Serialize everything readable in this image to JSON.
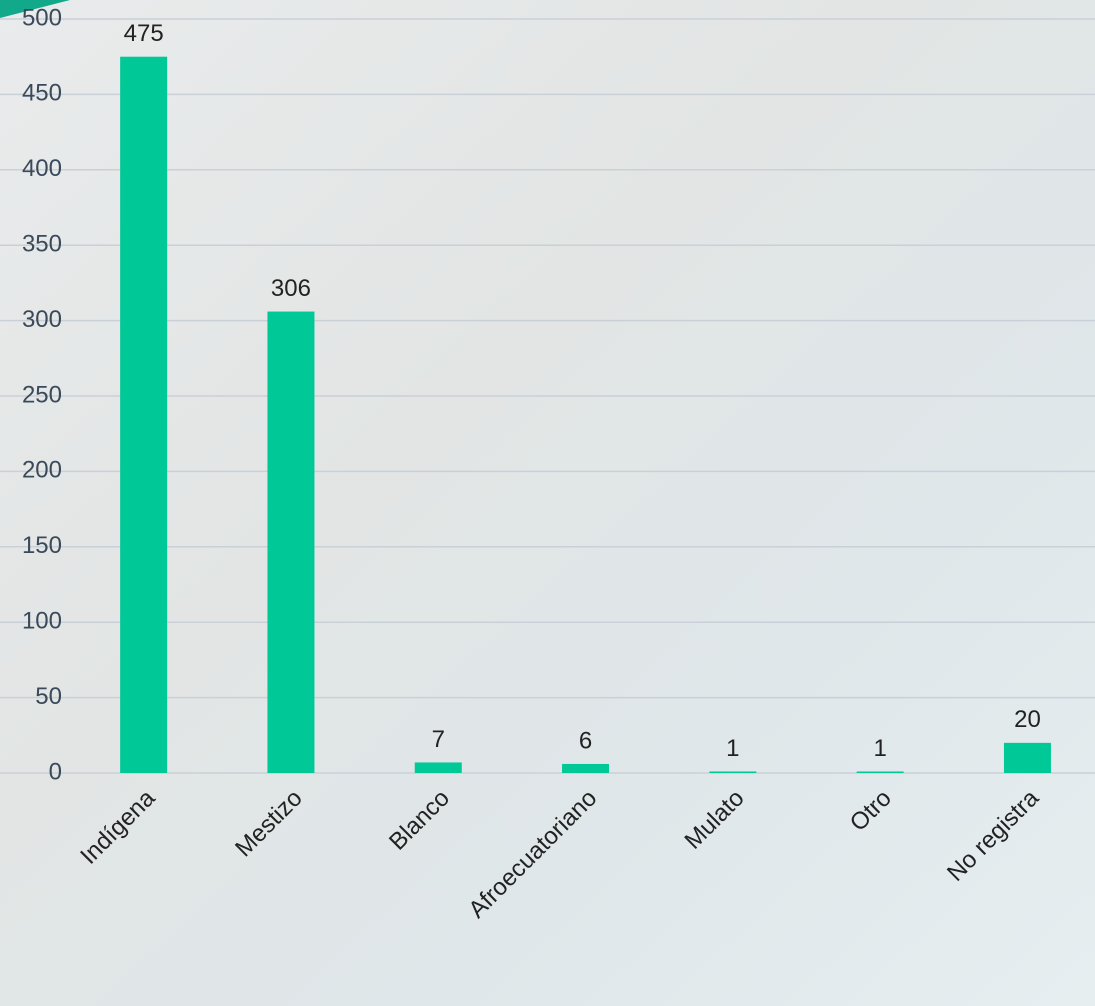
{
  "chart_data": {
    "type": "bar",
    "categories": [
      "Indígena",
      "Mestizo",
      "Blanco",
      "Afroecuatoriano",
      "Mulato",
      "Otro",
      "No registra"
    ],
    "values": [
      475,
      306,
      7,
      6,
      1,
      1,
      20
    ],
    "color": "#00c896",
    "ylim": [
      0,
      500
    ],
    "yticks": [
      0,
      50,
      100,
      150,
      200,
      250,
      300,
      350,
      400,
      450,
      500
    ],
    "grid": true
  }
}
